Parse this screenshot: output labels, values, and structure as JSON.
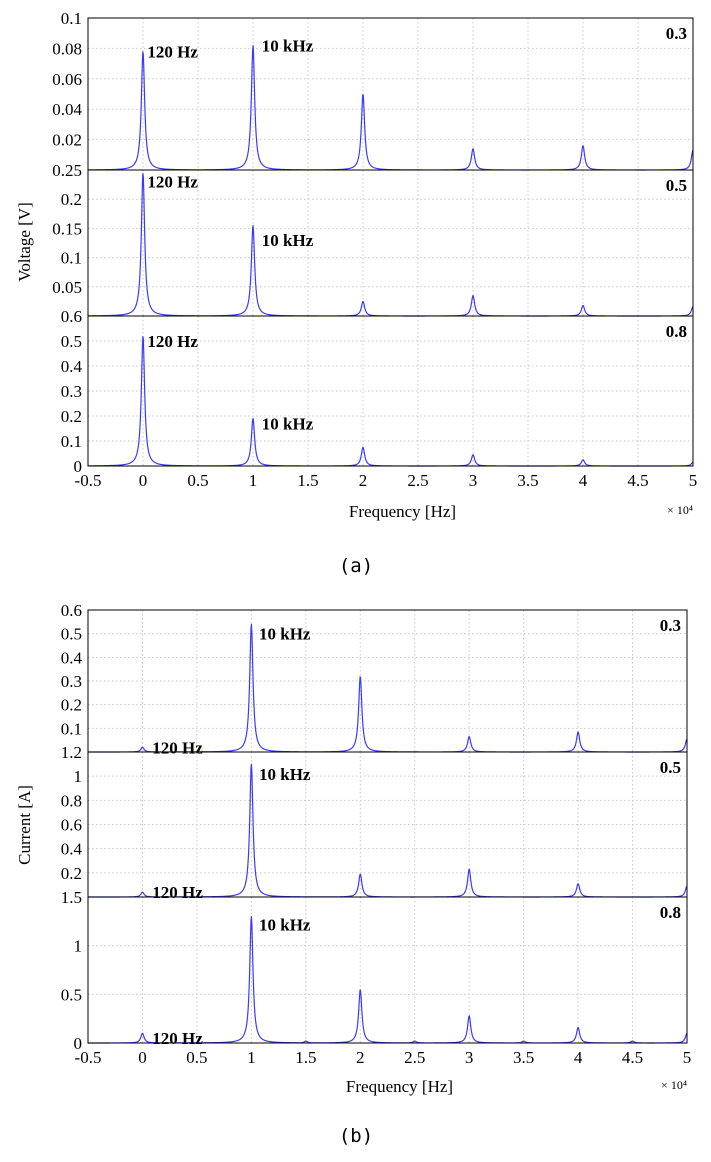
{
  "chart_data": [
    {
      "type": "line",
      "caption": "(a)",
      "ylabel": "Voltage [V]",
      "xlabel": "Frequency [Hz]",
      "x_multiplier": "× 10⁴",
      "xlim": [
        -0.5,
        5
      ],
      "xticks": [
        "-0.5",
        "0",
        "0.5",
        "1",
        "1.5",
        "2",
        "2.5",
        "3",
        "3.5",
        "4",
        "4.5",
        "5"
      ],
      "color": "#3a3aff",
      "panels": [
        {
          "label": "0.3",
          "ylim": [
            0,
            0.1
          ],
          "yticks": [
            {
              "v": 0.02,
              "t": "0.02"
            },
            {
              "v": 0.04,
              "t": "0.04"
            },
            {
              "v": 0.06,
              "t": "0.06"
            },
            {
              "v": 0.08,
              "t": "0.08"
            },
            {
              "v": 0.1,
              "t": "0.1"
            }
          ],
          "annotations": [
            {
              "text": "120 Hz",
              "x": 0.04,
              "y": 0.078
            },
            {
              "text": "10 kHz",
              "x": 1.08,
              "y": 0.082
            }
          ],
          "peaks": [
            [
              0,
              0.078
            ],
            [
              1,
              0.082
            ],
            [
              2,
              0.05
            ],
            [
              3,
              0.014
            ],
            [
              4,
              0.016
            ],
            [
              5,
              0.013
            ]
          ]
        },
        {
          "label": "0.5",
          "ylim": [
            0,
            0.25
          ],
          "yticks": [
            {
              "v": 0.05,
              "t": "0.05"
            },
            {
              "v": 0.1,
              "t": "0.1"
            },
            {
              "v": 0.15,
              "t": "0.15"
            },
            {
              "v": 0.2,
              "t": "0.2"
            },
            {
              "v": 0.25,
              "t": "0.25"
            }
          ],
          "annotations": [
            {
              "text": "120 Hz",
              "x": 0.04,
              "y": 0.23
            },
            {
              "text": "10 kHz",
              "x": 1.08,
              "y": 0.13
            }
          ],
          "peaks": [
            [
              0,
              0.245
            ],
            [
              1,
              0.155
            ],
            [
              2,
              0.025
            ],
            [
              3,
              0.035
            ],
            [
              4,
              0.018
            ],
            [
              5,
              0.016
            ]
          ]
        },
        {
          "label": "0.8",
          "ylim": [
            0,
            0.6
          ],
          "yticks": [
            {
              "v": 0,
              "t": "0"
            },
            {
              "v": 0.1,
              "t": "0.1"
            },
            {
              "v": 0.2,
              "t": "0.2"
            },
            {
              "v": 0.3,
              "t": "0.3"
            },
            {
              "v": 0.4,
              "t": "0.4"
            },
            {
              "v": 0.5,
              "t": "0.5"
            },
            {
              "v": 0.6,
              "t": "0.6"
            }
          ],
          "annotations": [
            {
              "text": "120 Hz",
              "x": 0.04,
              "y": 0.5
            },
            {
              "text": "10 kHz",
              "x": 1.08,
              "y": 0.17
            }
          ],
          "peaks": [
            [
              0,
              0.52
            ],
            [
              1,
              0.19
            ],
            [
              2,
              0.075
            ],
            [
              3,
              0.045
            ],
            [
              4,
              0.025
            ],
            [
              5,
              0.015
            ]
          ]
        }
      ]
    },
    {
      "type": "line",
      "caption": "(b)",
      "ylabel": "Current [A]",
      "xlabel": "Frequency [Hz]",
      "x_multiplier": "× 10⁴",
      "xlim": [
        -0.5,
        5
      ],
      "xticks": [
        "-0.5",
        "0",
        "0.5",
        "1",
        "1.5",
        "2",
        "2.5",
        "3",
        "3.5",
        "4",
        "4.5",
        "5"
      ],
      "color": "#3a3aff",
      "panels": [
        {
          "label": "0.3",
          "ylim": [
            0,
            0.6
          ],
          "yticks": [
            {
              "v": 0.1,
              "t": "0.1"
            },
            {
              "v": 0.2,
              "t": "0.2"
            },
            {
              "v": 0.3,
              "t": "0.3"
            },
            {
              "v": 0.4,
              "t": "0.4"
            },
            {
              "v": 0.5,
              "t": "0.5"
            },
            {
              "v": 0.6,
              "t": "0.6"
            }
          ],
          "annotations": [
            {
              "text": "120 Hz",
              "x": 0.09,
              "y": 0.02
            },
            {
              "text": "10 kHz",
              "x": 1.07,
              "y": 0.5
            }
          ],
          "peaks": [
            [
              0,
              0.02
            ],
            [
              1,
              0.54
            ],
            [
              2,
              0.32
            ],
            [
              3,
              0.065
            ],
            [
              4,
              0.085
            ],
            [
              5,
              0.055
            ]
          ]
        },
        {
          "label": "0.5",
          "ylim": [
            0,
            1.2
          ],
          "yticks": [
            {
              "v": 0.2,
              "t": "0.2"
            },
            {
              "v": 0.4,
              "t": "0.4"
            },
            {
              "v": 0.6,
              "t": "0.6"
            },
            {
              "v": 0.8,
              "t": "0.8"
            },
            {
              "v": 1,
              "t": "1"
            },
            {
              "v": 1.2,
              "t": "1.2"
            }
          ],
          "annotations": [
            {
              "text": "120 Hz",
              "x": 0.09,
              "y": 0.04
            },
            {
              "text": "10 kHz",
              "x": 1.07,
              "y": 1.02
            }
          ],
          "peaks": [
            [
              0,
              0.04
            ],
            [
              1,
              1.1
            ],
            [
              2,
              0.19
            ],
            [
              3,
              0.23
            ],
            [
              4,
              0.11
            ],
            [
              5,
              0.09
            ]
          ]
        },
        {
          "label": "0.8",
          "ylim": [
            0,
            1.5
          ],
          "yticks": [
            {
              "v": 0,
              "t": "0"
            },
            {
              "v": 0.5,
              "t": "0.5"
            },
            {
              "v": 1,
              "t": "1"
            },
            {
              "v": 1.5,
              "t": "1.5"
            }
          ],
          "annotations": [
            {
              "text": "120 Hz",
              "x": 0.09,
              "y": 0.05
            },
            {
              "text": "10 kHz",
              "x": 1.07,
              "y": 1.22
            }
          ],
          "peaks": [
            [
              0,
              0.1
            ],
            [
              1,
              1.3
            ],
            [
              1.5,
              0.02
            ],
            [
              2,
              0.55
            ],
            [
              2.5,
              0.02
            ],
            [
              3,
              0.28
            ],
            [
              3.5,
              0.02
            ],
            [
              4,
              0.16
            ],
            [
              4.5,
              0.02
            ],
            [
              5,
              0.1
            ]
          ]
        }
      ]
    }
  ]
}
